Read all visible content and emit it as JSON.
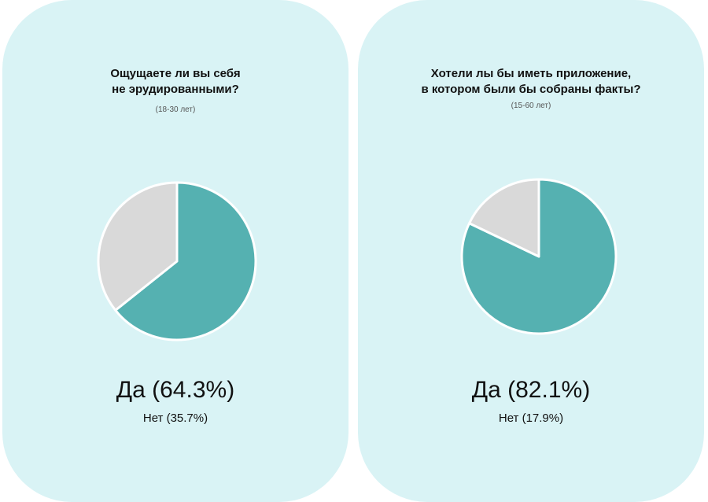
{
  "colors": {
    "card_background": "#d9f3f5",
    "yes": "#55b1b1",
    "no": "#d9d9d9",
    "separator": "#ffffff"
  },
  "chart_data": [
    {
      "type": "pie",
      "title_lines": [
        "Ощущаете ли вы себя",
        "не эрудированными?"
      ],
      "subtitle": "(18-30 лет)",
      "slices": [
        {
          "label": "Да",
          "value": 64.3,
          "color": "#55b1b1"
        },
        {
          "label": "Нет",
          "value": 35.7,
          "color": "#d9d9d9"
        }
      ],
      "yes_text": "Да (64.3%)",
      "no_text": "Нет (35.7%)"
    },
    {
      "type": "pie",
      "title_lines": [
        "Хотели лы бы иметь приложение,",
        "в котором были бы собраны факты?"
      ],
      "subtitle": "(15-60 лет)",
      "slices": [
        {
          "label": "Да",
          "value": 82.1,
          "color": "#55b1b1"
        },
        {
          "label": "Нет",
          "value": 17.9,
          "color": "#d9d9d9"
        }
      ],
      "yes_text": "Да (82.1%)",
      "no_text": "Нет (17.9%)"
    }
  ]
}
